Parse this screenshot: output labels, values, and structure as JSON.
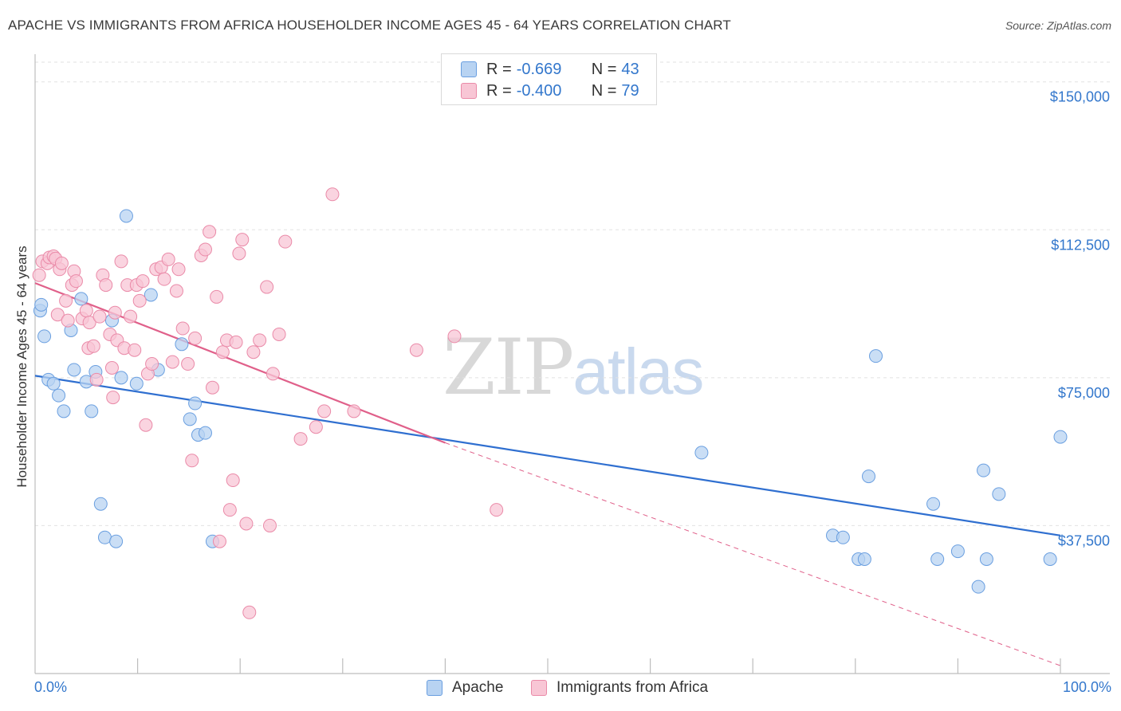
{
  "title": "APACHE VS IMMIGRANTS FROM AFRICA HOUSEHOLDER INCOME AGES 45 - 64 YEARS CORRELATION CHART",
  "source": "Source: ZipAtlas.com",
  "watermark": {
    "part1": "ZIP",
    "part2": "atlas"
  },
  "legend": {
    "rows": [
      {
        "r_label": "R =",
        "r_value": "-0.669",
        "n_label": "N =",
        "n_value": "43"
      },
      {
        "r_label": "R =",
        "r_value": "-0.400",
        "n_label": "N =",
        "n_value": "79"
      }
    ]
  },
  "bottom_legend": {
    "series1": "Apache",
    "series2": "Immigrants from Africa"
  },
  "colors": {
    "apache_fill": "#b8d3f2",
    "apache_stroke": "#6a9fe0",
    "apache_line": "#2f6fd0",
    "africa_fill": "#f8c6d5",
    "africa_stroke": "#ea8aa8",
    "africa_line": "#e0608a",
    "axis_text": "#3377cc",
    "grid": "#e2e2e2"
  },
  "chart_data": {
    "type": "scatter",
    "xlabel": "",
    "ylabel": "Householder Income Ages 45 - 64 years",
    "xlim": [
      0,
      100
    ],
    "ylim": [
      0,
      155000
    ],
    "x_tick_labels": {
      "min": "0.0%",
      "max": "100.0%"
    },
    "y_ticks": [
      {
        "value": 37500,
        "label": "$37,500"
      },
      {
        "value": 75000,
        "label": "$75,000"
      },
      {
        "value": 112500,
        "label": "$112,500"
      },
      {
        "value": 150000,
        "label": "$150,000"
      }
    ],
    "grid": true,
    "legend_position": "top-center",
    "series": [
      {
        "name": "Apache",
        "points": [
          [
            0.5,
            92000
          ],
          [
            0.6,
            93500
          ],
          [
            0.9,
            85500
          ],
          [
            1.3,
            74500
          ],
          [
            1.8,
            73500
          ],
          [
            2.3,
            70500
          ],
          [
            2.8,
            66500
          ],
          [
            3.5,
            87000
          ],
          [
            3.8,
            77000
          ],
          [
            4.5,
            95000
          ],
          [
            5.0,
            74000
          ],
          [
            5.5,
            66500
          ],
          [
            5.9,
            76500
          ],
          [
            6.4,
            43000
          ],
          [
            6.8,
            34500
          ],
          [
            7.5,
            89500
          ],
          [
            7.9,
            33500
          ],
          [
            8.4,
            75000
          ],
          [
            8.9,
            116000
          ],
          [
            9.9,
            73500
          ],
          [
            11.3,
            96000
          ],
          [
            12.0,
            77000
          ],
          [
            14.3,
            83500
          ],
          [
            15.1,
            64500
          ],
          [
            15.6,
            68500
          ],
          [
            15.9,
            60500
          ],
          [
            16.6,
            61000
          ],
          [
            17.3,
            33500
          ],
          [
            65.0,
            56000
          ],
          [
            77.8,
            35000
          ],
          [
            78.8,
            34500
          ],
          [
            81.3,
            50000
          ],
          [
            80.3,
            29000
          ],
          [
            80.9,
            29000
          ],
          [
            82.0,
            80500
          ],
          [
            87.6,
            43000
          ],
          [
            88.0,
            29000
          ],
          [
            90.0,
            31000
          ],
          [
            92.0,
            22000
          ],
          [
            92.5,
            51500
          ],
          [
            92.8,
            29000
          ],
          [
            94.0,
            45500
          ],
          [
            99.0,
            29000
          ],
          [
            100.0,
            60000
          ]
        ],
        "trend": {
          "x": [
            0,
            100
          ],
          "y": [
            75500,
            35000
          ]
        }
      },
      {
        "name": "Immigrants from Africa",
        "points": [
          [
            0.4,
            101000
          ],
          [
            0.7,
            104500
          ],
          [
            1.2,
            104000
          ],
          [
            1.4,
            105500
          ],
          [
            1.8,
            105800
          ],
          [
            2.0,
            105200
          ],
          [
            2.4,
            102500
          ],
          [
            2.6,
            104000
          ],
          [
            2.2,
            91000
          ],
          [
            3.0,
            94500
          ],
          [
            3.2,
            89500
          ],
          [
            3.6,
            98500
          ],
          [
            3.8,
            102000
          ],
          [
            4.0,
            99500
          ],
          [
            4.6,
            90000
          ],
          [
            5.0,
            92000
          ],
          [
            5.3,
            89000
          ],
          [
            5.2,
            82500
          ],
          [
            5.7,
            83000
          ],
          [
            6.0,
            74500
          ],
          [
            6.3,
            90500
          ],
          [
            6.6,
            101000
          ],
          [
            6.9,
            98500
          ],
          [
            7.3,
            86000
          ],
          [
            7.5,
            77500
          ],
          [
            7.6,
            70000
          ],
          [
            7.8,
            91500
          ],
          [
            8.0,
            84500
          ],
          [
            8.4,
            104500
          ],
          [
            8.7,
            82500
          ],
          [
            9.0,
            98500
          ],
          [
            9.3,
            90500
          ],
          [
            9.7,
            82000
          ],
          [
            9.9,
            98500
          ],
          [
            10.2,
            94500
          ],
          [
            10.5,
            99500
          ],
          [
            10.8,
            63000
          ],
          [
            11.0,
            76000
          ],
          [
            11.4,
            78500
          ],
          [
            11.8,
            102500
          ],
          [
            12.3,
            103000
          ],
          [
            12.6,
            100000
          ],
          [
            13.0,
            105000
          ],
          [
            13.4,
            79000
          ],
          [
            13.8,
            97000
          ],
          [
            14.0,
            102500
          ],
          [
            14.4,
            87500
          ],
          [
            14.9,
            78500
          ],
          [
            15.3,
            54000
          ],
          [
            15.6,
            85000
          ],
          [
            16.2,
            106000
          ],
          [
            16.6,
            107500
          ],
          [
            17.0,
            112000
          ],
          [
            17.3,
            72500
          ],
          [
            17.7,
            95500
          ],
          [
            18.0,
            33500
          ],
          [
            18.3,
            81500
          ],
          [
            18.7,
            84500
          ],
          [
            19.0,
            41500
          ],
          [
            19.3,
            49000
          ],
          [
            19.6,
            84000
          ],
          [
            19.9,
            106500
          ],
          [
            20.2,
            110000
          ],
          [
            20.6,
            38000
          ],
          [
            20.9,
            15500
          ],
          [
            21.3,
            81500
          ],
          [
            21.9,
            84500
          ],
          [
            22.6,
            98000
          ],
          [
            22.9,
            37500
          ],
          [
            23.2,
            76000
          ],
          [
            23.8,
            86000
          ],
          [
            24.4,
            109500
          ],
          [
            25.9,
            59500
          ],
          [
            27.4,
            62500
          ],
          [
            28.2,
            66500
          ],
          [
            29.0,
            121500
          ],
          [
            31.1,
            66500
          ],
          [
            37.2,
            82000
          ],
          [
            40.9,
            85500
          ],
          [
            45.0,
            41500
          ]
        ],
        "trend": {
          "x": [
            0,
            40
          ],
          "y": [
            99000,
            58500
          ]
        },
        "trend_extension": {
          "x": [
            40,
            100
          ],
          "y": [
            58500,
            2000
          ]
        }
      }
    ]
  }
}
